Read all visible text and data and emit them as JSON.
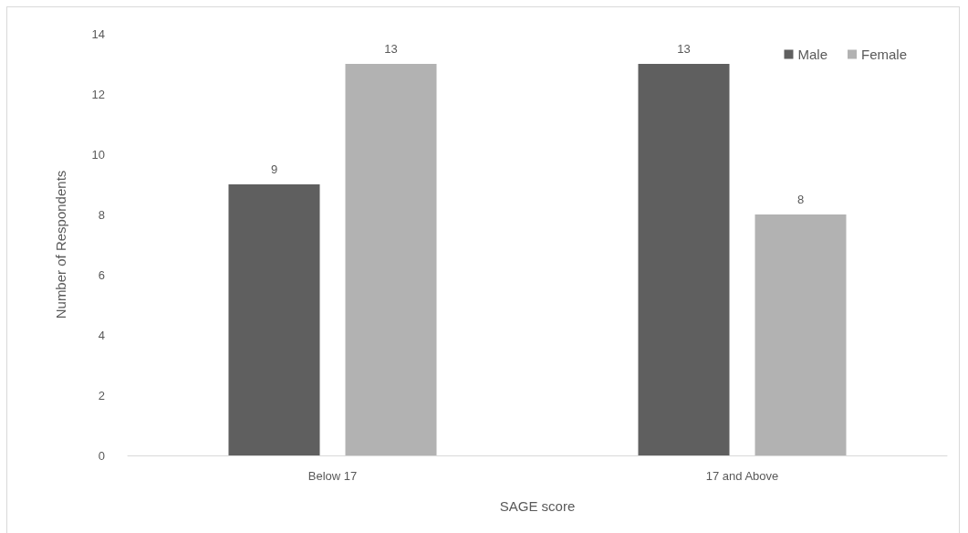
{
  "chart_data": {
    "type": "bar",
    "xlabel": "SAGE score",
    "ylabel": "Number of Respondents",
    "categories": [
      "Below 17",
      "17 and Above"
    ],
    "series": [
      {
        "name": "Male",
        "color": "#5f5f5f",
        "values": [
          9,
          13
        ]
      },
      {
        "name": "Female",
        "color": "#b2b2b2",
        "values": [
          13,
          8
        ]
      }
    ],
    "ylim": [
      0,
      14
    ],
    "yticks": [
      0,
      2,
      4,
      6,
      8,
      10,
      12,
      14
    ],
    "data_labels": true,
    "grid": false,
    "legend": "top right"
  }
}
